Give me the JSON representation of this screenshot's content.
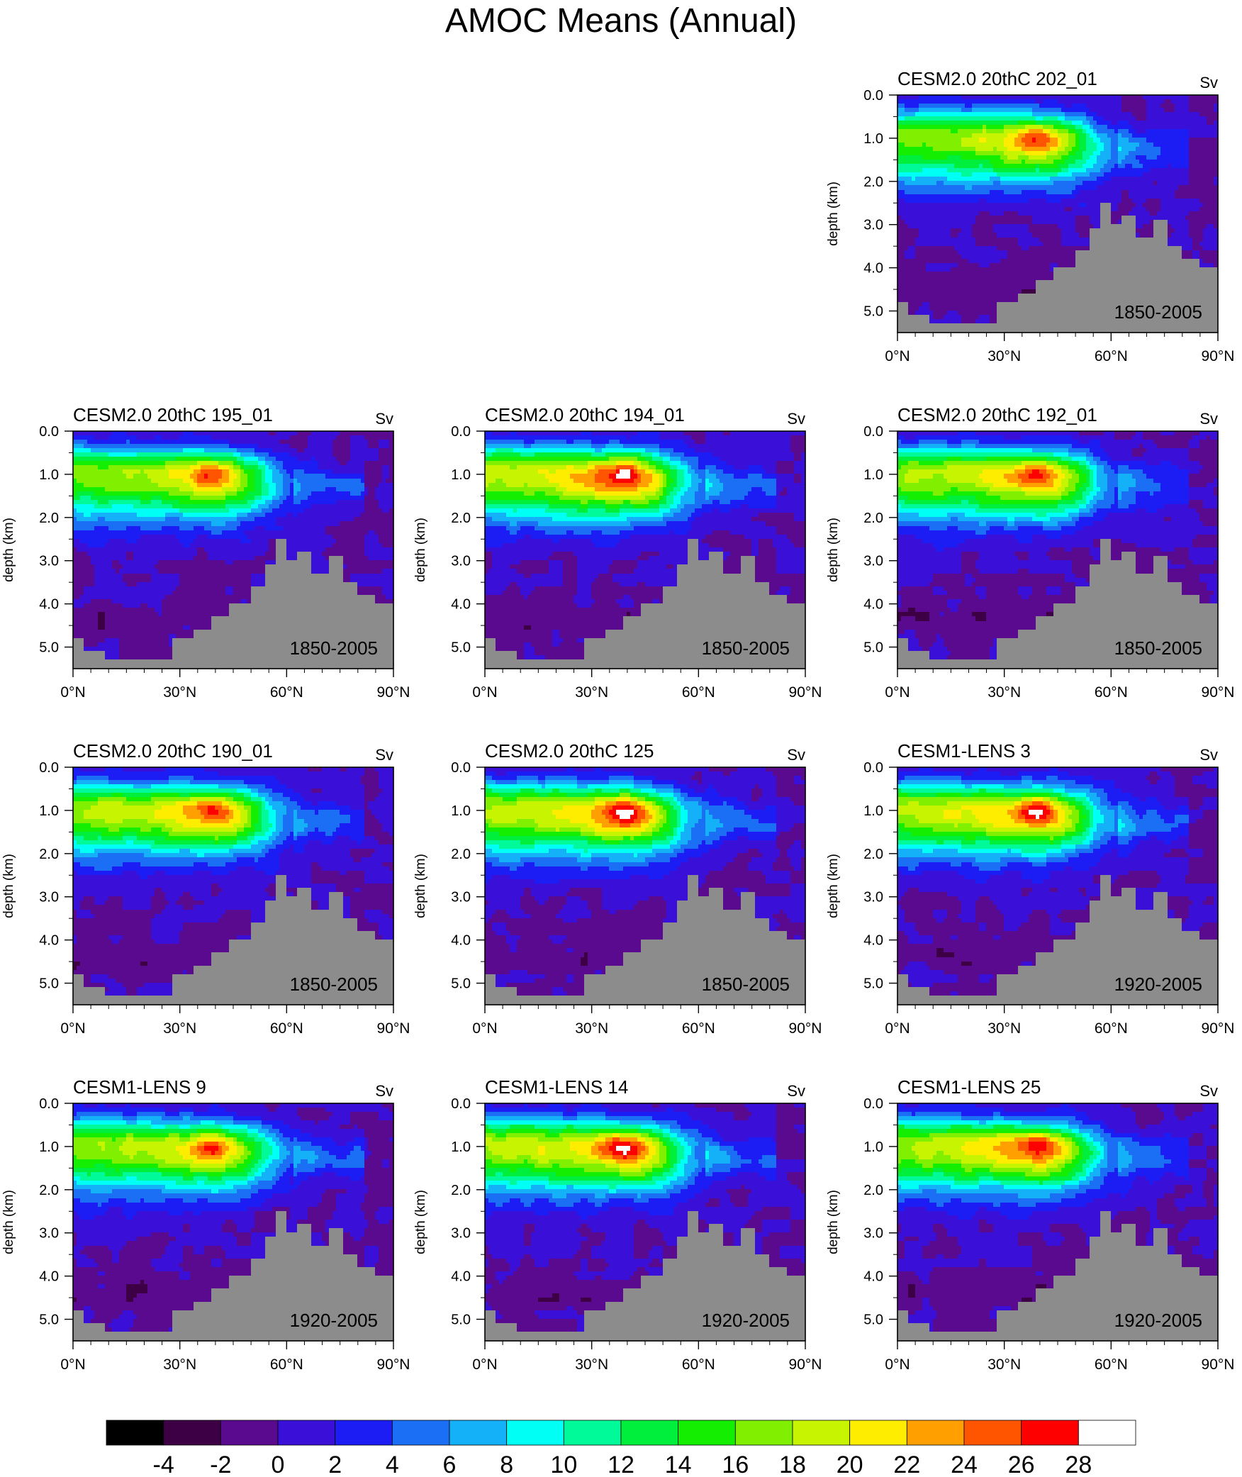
{
  "figure": {
    "title": "AMOC Means (Annual)"
  },
  "colors": {
    "land": "#8c8c8c",
    "levels": [
      "#000000",
      "#3d0045",
      "#5a0a8f",
      "#3a10d8",
      "#1c1cf4",
      "#1a6ff5",
      "#14b0f8",
      "#00fff4",
      "#00fa9a",
      "#00ef3c",
      "#14ee00",
      "#80f000",
      "#c7f400",
      "#ffed00",
      "#ffa000",
      "#ff5500",
      "#ff0000",
      "#ffffff"
    ]
  },
  "colorbar": {
    "tick_labels": [
      "-4",
      "-2",
      "0",
      "2",
      "4",
      "6",
      "8",
      "10",
      "12",
      "14",
      "16",
      "18",
      "20",
      "22",
      "24",
      "26",
      "28"
    ]
  },
  "chart_data": [
    {
      "type": "heatmap",
      "title": "CESM2.0 20thC 202_01",
      "units": "Sv",
      "period": "1850-2005",
      "ylabel": "depth (km)",
      "xlim": [
        0,
        90
      ],
      "ylim": [
        0,
        5.5
      ],
      "xticks": [
        "0°N",
        "30°N",
        "60°N",
        "90°N"
      ],
      "yticks": [
        "0.0",
        "1.0",
        "2.0",
        "3.0",
        "4.0",
        "5.0"
      ],
      "max_sv": 26
    },
    {
      "type": "heatmap",
      "title": "CESM2.0 20thC 195_01",
      "units": "Sv",
      "period": "1850-2005",
      "ylabel": "depth (km)",
      "xlim": [
        0,
        90
      ],
      "ylim": [
        0,
        5.5
      ],
      "xticks": [
        "0°N",
        "30°N",
        "60°N",
        "90°N"
      ],
      "yticks": [
        "0.0",
        "1.0",
        "2.0",
        "3.0",
        "4.0",
        "5.0"
      ],
      "max_sv": 26
    },
    {
      "type": "heatmap",
      "title": "CESM2.0 20thC 194_01",
      "units": "Sv",
      "period": "1850-2005",
      "ylabel": "depth (km)",
      "xlim": [
        0,
        90
      ],
      "ylim": [
        0,
        5.5
      ],
      "xticks": [
        "0°N",
        "30°N",
        "60°N",
        "90°N"
      ],
      "yticks": [
        "0.0",
        "1.0",
        "2.0",
        "3.0",
        "4.0",
        "5.0"
      ],
      "max_sv": 29
    },
    {
      "type": "heatmap",
      "title": "CESM2.0 20thC 192_01",
      "units": "Sv",
      "period": "1850-2005",
      "ylabel": "depth (km)",
      "xlim": [
        0,
        90
      ],
      "ylim": [
        0,
        5.5
      ],
      "xticks": [
        "0°N",
        "30°N",
        "60°N",
        "90°N"
      ],
      "yticks": [
        "0.0",
        "1.0",
        "2.0",
        "3.0",
        "4.0",
        "5.0"
      ],
      "max_sv": 27
    },
    {
      "type": "heatmap",
      "title": "CESM2.0 20thC 190_01",
      "units": "Sv",
      "period": "1850-2005",
      "ylabel": "depth (km)",
      "xlim": [
        0,
        90
      ],
      "ylim": [
        0,
        5.5
      ],
      "xticks": [
        "0°N",
        "30°N",
        "60°N",
        "90°N"
      ],
      "yticks": [
        "0.0",
        "1.0",
        "2.0",
        "3.0",
        "4.0",
        "5.0"
      ],
      "max_sv": 27
    },
    {
      "type": "heatmap",
      "title": "CESM2.0 20thC 125",
      "units": "Sv",
      "period": "1850-2005",
      "ylabel": "depth (km)",
      "xlim": [
        0,
        90
      ],
      "ylim": [
        0,
        5.5
      ],
      "xticks": [
        "0°N",
        "30°N",
        "60°N",
        "90°N"
      ],
      "yticks": [
        "0.0",
        "1.0",
        "2.0",
        "3.0",
        "4.0",
        "5.0"
      ],
      "max_sv": 28.5
    },
    {
      "type": "heatmap",
      "title": "CESM1-LENS 3",
      "units": "Sv",
      "period": "1920-2005",
      "ylabel": "depth (km)",
      "xlim": [
        0,
        90
      ],
      "ylim": [
        0,
        5.5
      ],
      "xticks": [
        "0°N",
        "30°N",
        "60°N",
        "90°N"
      ],
      "yticks": [
        "0.0",
        "1.0",
        "2.0",
        "3.0",
        "4.0",
        "5.0"
      ],
      "max_sv": 28
    },
    {
      "type": "heatmap",
      "title": "CESM1-LENS 9",
      "units": "Sv",
      "period": "1920-2005",
      "ylabel": "depth (km)",
      "xlim": [
        0,
        90
      ],
      "ylim": [
        0,
        5.5
      ],
      "xticks": [
        "0°N",
        "30°N",
        "60°N",
        "90°N"
      ],
      "yticks": [
        "0.0",
        "1.0",
        "2.0",
        "3.0",
        "4.0",
        "5.0"
      ],
      "max_sv": 26
    },
    {
      "type": "heatmap",
      "title": "CESM1-LENS 14",
      "units": "Sv",
      "period": "1920-2005",
      "ylabel": "depth (km)",
      "xlim": [
        0,
        90
      ],
      "ylim": [
        0,
        5.5
      ],
      "xticks": [
        "0°N",
        "30°N",
        "60°N",
        "90°N"
      ],
      "yticks": [
        "0.0",
        "1.0",
        "2.0",
        "3.0",
        "4.0",
        "5.0"
      ],
      "max_sv": 28
    },
    {
      "type": "heatmap",
      "title": "CESM1-LENS 25",
      "units": "Sv",
      "period": "1920-2005",
      "ylabel": "depth (km)",
      "xlim": [
        0,
        90
      ],
      "ylim": [
        0,
        5.5
      ],
      "xticks": [
        "0°N",
        "30°N",
        "60°N",
        "90°N"
      ],
      "yticks": [
        "0.0",
        "1.0",
        "2.0",
        "3.0",
        "4.0",
        "5.0"
      ],
      "max_sv": 28
    }
  ]
}
